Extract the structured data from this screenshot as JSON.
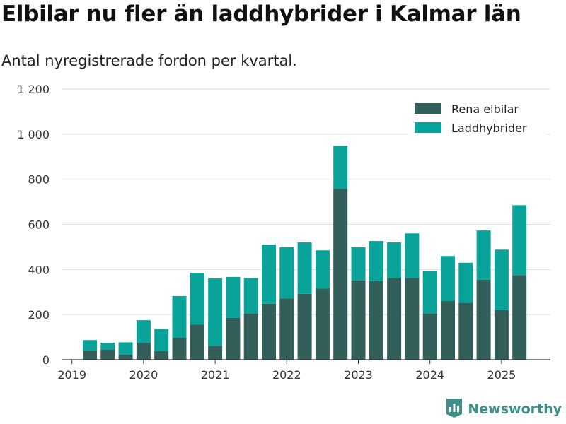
{
  "title": "Elbilar nu fler än laddhybrider i Kalmar län",
  "subtitle": "Antal nyregistrerade fordon per kvartal.",
  "brand": {
    "name": "Newsworthy",
    "icon": "newsworthy-logo-icon"
  },
  "colors": {
    "series_1": "#335f5a",
    "series_2": "#0aa39a",
    "grid": "#dcdcdc",
    "axis": "#333333"
  },
  "chart_data": {
    "type": "bar",
    "stacked": true,
    "categories": [
      "2019 Q2",
      "2019 Q3",
      "2019 Q4",
      "2020 Q1",
      "2020 Q2",
      "2020 Q3",
      "2020 Q4",
      "2021 Q1",
      "2021 Q2",
      "2021 Q3",
      "2021 Q4",
      "2022 Q1",
      "2022 Q2",
      "2022 Q3",
      "2022 Q4",
      "2023 Q1",
      "2023 Q2",
      "2023 Q3",
      "2023 Q4",
      "2024 Q1",
      "2024 Q2",
      "2024 Q3",
      "2024 Q4",
      "2025 Q1",
      "2025 Q2"
    ],
    "x_tick_labels": [
      "2019",
      "2020",
      "2021",
      "2022",
      "2023",
      "2024",
      "2025"
    ],
    "series": [
      {
        "name": "Rena elbilar",
        "color": "#335f5a",
        "values": [
          42,
          45,
          22,
          75,
          38,
          97,
          155,
          62,
          185,
          205,
          248,
          272,
          292,
          315,
          758,
          352,
          348,
          362,
          362,
          205,
          260,
          252,
          355,
          220,
          375
        ]
      },
      {
        "name": "Laddhybrider",
        "color": "#0aa39a",
        "values": [
          45,
          30,
          55,
          100,
          98,
          185,
          230,
          298,
          182,
          157,
          262,
          226,
          228,
          170,
          190,
          146,
          178,
          158,
          198,
          187,
          200,
          178,
          218,
          268,
          310
        ]
      }
    ],
    "ylim": [
      0,
      1200
    ],
    "yticks": [
      0,
      200,
      400,
      600,
      800,
      1000,
      1200
    ],
    "ytick_labels": [
      "0",
      "200",
      "400",
      "600",
      "800",
      "1 000",
      "1 200"
    ],
    "grid": true,
    "legend_position": "top-right",
    "xlabel": "",
    "ylabel": ""
  }
}
